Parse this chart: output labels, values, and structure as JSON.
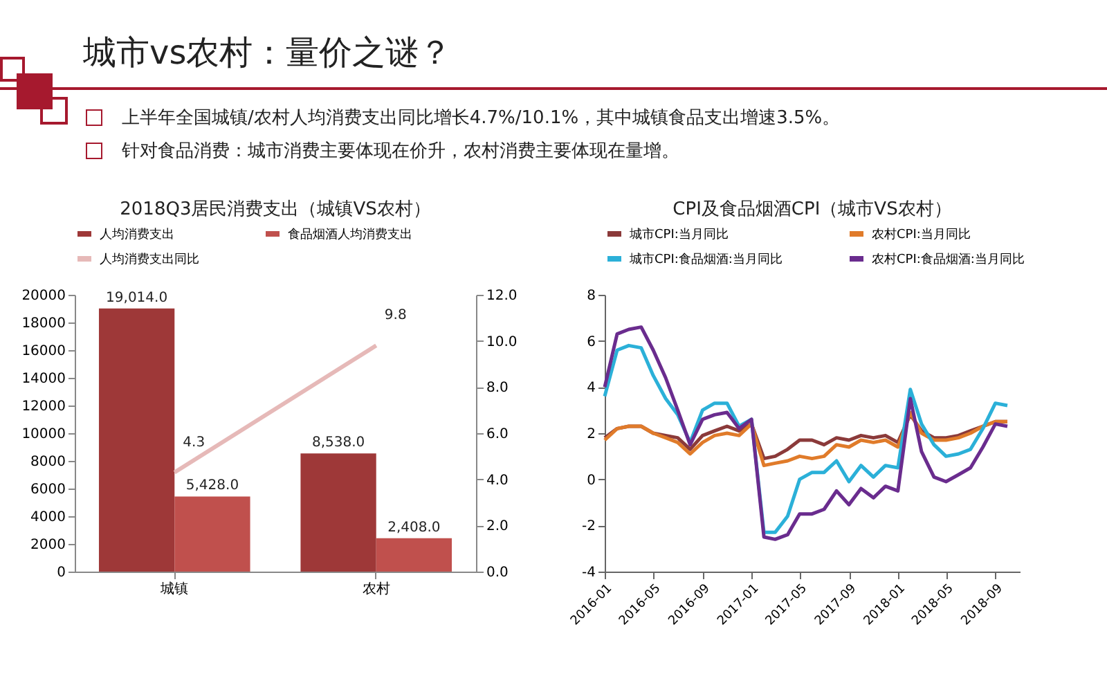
{
  "chart_data": [
    {
      "type": "other",
      "title": "城市vs农村：量价之谜？",
      "annotations": [
        "上半年全国城镇/农村人均消费支出同比增长4.7%/10.1%，其中城镇食品支出增速3.5%。",
        "针对食品消费：城市消费主要体现在价升，农村消费主要体现在量增。"
      ]
    },
    {
      "type": "bar",
      "title": "2018Q3居民消费支出（城镇VS农村）",
      "categories": [
        "城镇",
        "农村"
      ],
      "legend": "top",
      "grid": false,
      "ylim": [
        0,
        20000
      ],
      "yticks": [
        0,
        2000,
        4000,
        6000,
        8000,
        10000,
        12000,
        14000,
        16000,
        18000,
        20000
      ],
      "y2lim": [
        0,
        12
      ],
      "y2ticks": [
        {
          "value": 0,
          "label": "0.0"
        },
        {
          "value": 2,
          "label": "2.0"
        },
        {
          "value": 4,
          "label": "4.0"
        },
        {
          "value": 6,
          "label": "6.0"
        },
        {
          "value": 8,
          "label": "8.0"
        },
        {
          "value": 10,
          "label": "10.0"
        },
        {
          "value": 12,
          "label": "12.0"
        }
      ],
      "series": [
        {
          "name": "人均消费支出",
          "color": "#9e3838",
          "values": [
            19014,
            8538
          ],
          "value_labels": [
            "19,014.0",
            "8,538.0"
          ]
        },
        {
          "name": "食品烟酒人均消费支出",
          "color": "#c0504d",
          "values": [
            5428,
            2408
          ],
          "value_labels": [
            "5,428.0",
            "2,408.0"
          ]
        },
        {
          "name": "人均消费支出同比",
          "type": "line",
          "axis": "y2",
          "color": "#e6b9b8",
          "values": [
            4.3,
            9.8
          ],
          "value_labels": [
            "4.3",
            "9.8"
          ]
        }
      ]
    },
    {
      "type": "line",
      "title": "CPI及食品烟酒CPI（城市VS农村）",
      "legend": "top",
      "grid": false,
      "marker": "none",
      "line_style": "solid",
      "x": [
        "2016-01",
        "2016-02",
        "2016-03",
        "2016-04",
        "2016-05",
        "2016-06",
        "2016-07",
        "2016-08",
        "2016-09",
        "2016-10",
        "2016-11",
        "2016-12",
        "2017-01",
        "2017-02",
        "2017-03",
        "2017-04",
        "2017-05",
        "2017-06",
        "2017-07",
        "2017-08",
        "2017-09",
        "2017-10",
        "2017-11",
        "2017-12",
        "2018-01",
        "2018-02",
        "2018-03",
        "2018-04",
        "2018-05",
        "2018-06",
        "2018-07",
        "2018-08",
        "2018-09",
        "2018-10"
      ],
      "xlim": [
        "2016-01",
        "2018-11"
      ],
      "xticks": [
        {
          "value": "2016-01",
          "label": "2016-01"
        },
        {
          "value": "2016-05",
          "label": "2016-05"
        },
        {
          "value": "2016-09",
          "label": "2016-09"
        },
        {
          "value": "2017-01",
          "label": "2017-01"
        },
        {
          "value": "2017-05",
          "label": "2017-05"
        },
        {
          "value": "2017-09",
          "label": "2017-09"
        },
        {
          "value": "2018-01",
          "label": "2018-01"
        },
        {
          "value": "2018-05",
          "label": "2018-05"
        },
        {
          "value": "2018-09",
          "label": "2018-09"
        }
      ],
      "ylim": [
        -4,
        8
      ],
      "yticks": [
        -4,
        -2,
        0,
        2,
        4,
        6,
        8
      ],
      "series": [
        {
          "name": "城市CPI:当月同比",
          "color": "#8b3a3a",
          "values": [
            1.8,
            2.2,
            2.3,
            2.3,
            2.0,
            1.9,
            1.8,
            1.3,
            1.9,
            2.1,
            2.3,
            2.1,
            2.4,
            0.9,
            1.0,
            1.3,
            1.7,
            1.7,
            1.5,
            1.8,
            1.7,
            1.9,
            1.8,
            1.9,
            1.6,
            2.8,
            2.1,
            1.8,
            1.8,
            1.9,
            2.1,
            2.3,
            2.5,
            2.5
          ]
        },
        {
          "name": "农村CPI:当月同比",
          "color": "#e07b2a",
          "values": [
            1.7,
            2.2,
            2.3,
            2.3,
            2.0,
            1.8,
            1.6,
            1.1,
            1.6,
            1.9,
            2.0,
            1.9,
            2.4,
            0.6,
            0.7,
            0.8,
            1.0,
            0.9,
            1.0,
            1.5,
            1.4,
            1.7,
            1.6,
            1.7,
            1.4,
            2.9,
            2.0,
            1.7,
            1.7,
            1.8,
            2.0,
            2.3,
            2.5,
            2.5
          ]
        },
        {
          "name": "城市CPI:食品烟酒:当月同比",
          "color": "#2bb0d8",
          "values": [
            3.6,
            5.6,
            5.8,
            5.7,
            4.5,
            3.5,
            2.8,
            1.6,
            3.0,
            3.3,
            3.3,
            2.3,
            2.6,
            -2.3,
            -2.3,
            -1.6,
            0.0,
            0.3,
            0.3,
            0.8,
            -0.1,
            0.6,
            0.1,
            0.6,
            0.5,
            3.9,
            2.4,
            1.5,
            1.0,
            1.1,
            1.3,
            2.2,
            3.3,
            3.2
          ]
        },
        {
          "name": "农村CPI:食品烟酒:当月同比",
          "color": "#6a2c8e",
          "values": [
            4.0,
            6.3,
            6.5,
            6.6,
            5.6,
            4.4,
            3.0,
            1.5,
            2.6,
            2.8,
            2.9,
            2.2,
            2.6,
            -2.5,
            -2.6,
            -2.4,
            -1.5,
            -1.5,
            -1.3,
            -0.5,
            -1.1,
            -0.4,
            -0.8,
            -0.3,
            -0.5,
            3.5,
            1.2,
            0.1,
            -0.1,
            0.2,
            0.5,
            1.4,
            2.4,
            2.3
          ]
        }
      ]
    }
  ]
}
